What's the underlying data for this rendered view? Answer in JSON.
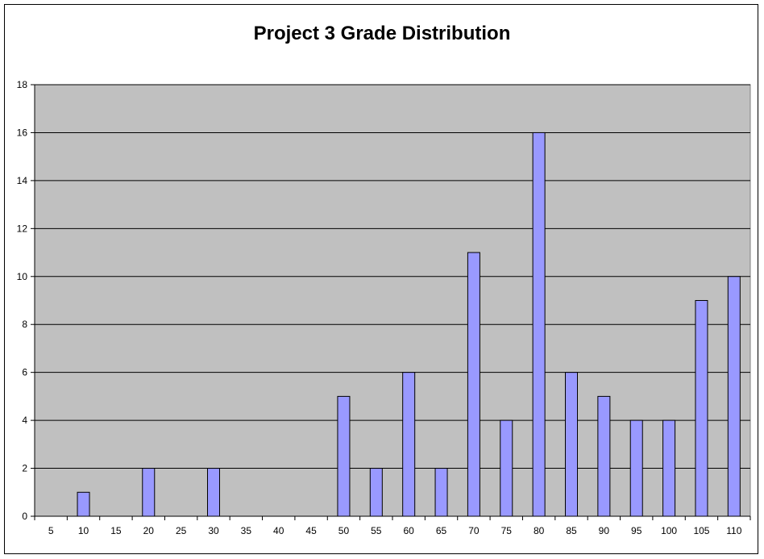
{
  "chart_data": {
    "type": "bar",
    "title": "Project 3 Grade Distribution",
    "xlabel": "",
    "ylabel": "",
    "categories": [
      "5",
      "10",
      "15",
      "20",
      "25",
      "30",
      "35",
      "40",
      "45",
      "50",
      "55",
      "60",
      "65",
      "70",
      "75",
      "80",
      "85",
      "90",
      "95",
      "100",
      "105",
      "110"
    ],
    "values": [
      0,
      1,
      0,
      2,
      0,
      2,
      0,
      0,
      0,
      5,
      2,
      6,
      2,
      11,
      4,
      16,
      6,
      5,
      4,
      4,
      9,
      10
    ],
    "ylim": [
      0,
      18
    ],
    "yticks": [
      0,
      2,
      4,
      6,
      8,
      10,
      12,
      14,
      16,
      18
    ],
    "grid": true,
    "legend": "none",
    "colors": {
      "plot_background": "#C0C0C0",
      "bar_fill": "#9999FF",
      "bar_stroke": "#000000",
      "gridline": "#000000"
    }
  }
}
